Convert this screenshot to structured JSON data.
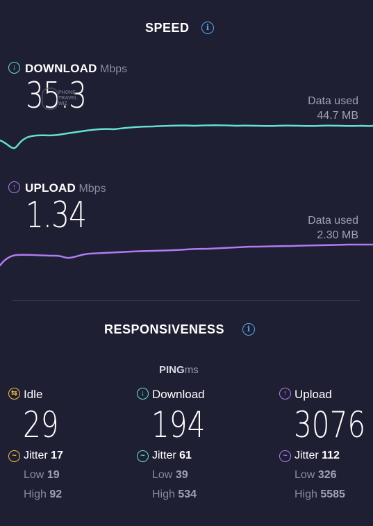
{
  "speed": {
    "title": "SPEED",
    "download": {
      "label": "DOWNLOAD",
      "unit": "Mbps",
      "value": "35.3",
      "data_used_label": "Data used",
      "data_used_value": "44.7 MB",
      "color": "#64e0d4"
    },
    "upload": {
      "label": "UPLOAD",
      "unit": "Mbps",
      "value": "1.34",
      "data_used_label": "Data used",
      "data_used_value": "2.30 MB",
      "color": "#b07cf0"
    }
  },
  "responsiveness": {
    "title": "RESPONSIVENESS",
    "ping_label": "PING",
    "ping_unit": "ms",
    "columns": [
      {
        "label": "Idle",
        "value": "29",
        "jitter_label": "Jitter",
        "jitter": "17",
        "low_label": "Low",
        "low": "19",
        "high_label": "High",
        "high": "92",
        "color": "#f0c24a"
      },
      {
        "label": "Download",
        "value": "194",
        "jitter_label": "Jitter",
        "jitter": "61",
        "low_label": "Low",
        "low": "39",
        "high_label": "High",
        "high": "534",
        "color": "#64e0d4"
      },
      {
        "label": "Upload",
        "value": "3076",
        "jitter_label": "Jitter",
        "jitter": "112",
        "low_label": "Low",
        "low": "326",
        "high_label": "High",
        "high": "5585",
        "color": "#b07cf0"
      }
    ]
  },
  "watermark": {
    "line1": "PHONE",
    "line2": "TRAVEL",
    "line3": "WIZ"
  },
  "colors": {
    "background": "#1f1f33",
    "info": "#5aa6e8"
  }
}
